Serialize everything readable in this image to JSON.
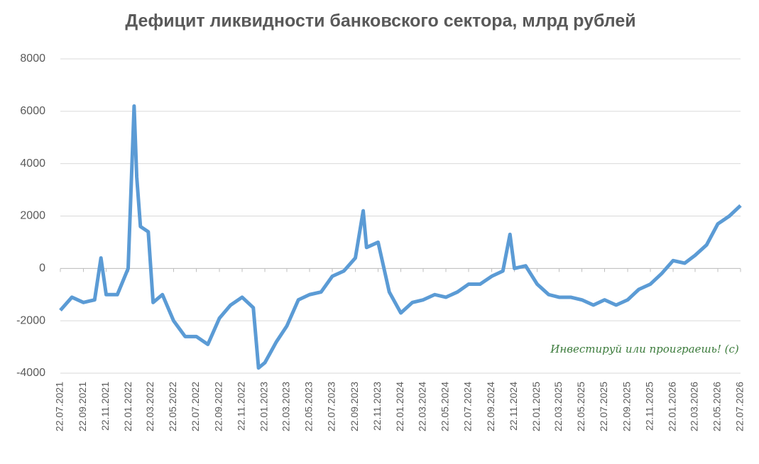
{
  "chart_data": {
    "type": "line",
    "title": "Дефицит ликвидности банковского сектора, млрд рублей",
    "annotation": "Инвестируй или проиграешь! (с)",
    "ylim": [
      -4000,
      8000
    ],
    "yticks": [
      -4000,
      -2000,
      0,
      2000,
      4000,
      6000,
      8000
    ],
    "grid": true,
    "xlim": [
      "22.07.2021",
      "22.07.2026"
    ],
    "xticks": [
      "22.07.2021",
      "22.09.2021",
      "22.11.2021",
      "22.01.2022",
      "22.03.2022",
      "22.05.2022",
      "22.07.2022",
      "22.09.2022",
      "22.11.2022",
      "22.01.2023",
      "22.03.2023",
      "22.05.2023",
      "22.07.2023",
      "22.09.2023",
      "22.11.2023",
      "22.01.2024",
      "22.03.2024",
      "22.05.2024",
      "22.07.2024",
      "22.09.2024",
      "22.11.2024",
      "22.01.2025",
      "22.03.2025",
      "22.05.2025",
      "22.07.2025",
      "22.09.2025",
      "22.11.2025",
      "22.01.2026",
      "22.03.2026",
      "22.05.2026",
      "22.07.2026"
    ],
    "x": [
      "22.07.2021",
      "22.08.2021",
      "22.09.2021",
      "22.10.2021",
      "08.11.2021",
      "22.11.2021",
      "22.12.2021",
      "20.01.2022",
      "05.02.2022",
      "12.02.2022",
      "22.02.2022",
      "15.03.2022",
      "28.03.2022",
      "22.04.2022",
      "22.05.2022",
      "22.06.2022",
      "22.07.2022",
      "22.08.2022",
      "22.09.2022",
      "22.10.2022",
      "22.11.2022",
      "22.12.2022",
      "05.01.2023",
      "22.01.2023",
      "22.02.2023",
      "22.03.2023",
      "22.04.2023",
      "22.05.2023",
      "22.06.2023",
      "22.07.2023",
      "22.08.2023",
      "22.09.2023",
      "13.10.2023",
      "22.10.2023",
      "22.11.2023",
      "22.12.2023",
      "22.01.2024",
      "22.02.2024",
      "22.03.2024",
      "22.04.2024",
      "22.05.2024",
      "22.06.2024",
      "22.07.2024",
      "22.08.2024",
      "22.09.2024",
      "22.10.2024",
      "10.11.2024",
      "22.11.2024",
      "22.12.2024",
      "22.01.2025",
      "22.02.2025",
      "22.03.2025",
      "22.04.2025",
      "22.05.2025",
      "22.06.2025",
      "22.07.2025",
      "22.08.2025",
      "22.09.2025",
      "22.10.2025",
      "22.11.2025",
      "22.12.2025",
      "22.01.2026",
      "22.02.2026",
      "22.03.2026",
      "22.04.2026",
      "22.05.2026",
      "22.06.2026",
      "22.07.2026"
    ],
    "series": [
      {
        "name": "Дефицит ликвидности",
        "color": "#5b9bd5",
        "values": [
          -1600,
          -1100,
          -1300,
          -1200,
          400,
          -1000,
          -1000,
          0,
          6200,
          3500,
          1600,
          1400,
          -1300,
          -1000,
          -2000,
          -2600,
          -2600,
          -2900,
          -1900,
          -1400,
          -1100,
          -1500,
          -3800,
          -3600,
          -2800,
          -2200,
          -1200,
          -1000,
          -900,
          -300,
          -100,
          400,
          2200,
          800,
          1000,
          -900,
          -1700,
          -1300,
          -1200,
          -1000,
          -1100,
          -900,
          -600,
          -600,
          -300,
          -100,
          1300,
          0,
          100,
          -600,
          -1000,
          -1100,
          -1100,
          -1200,
          -1400,
          -1200,
          -1400,
          -1200,
          -800,
          -600,
          -200,
          300,
          200,
          500,
          900,
          1700,
          2000,
          2400
        ]
      }
    ]
  }
}
